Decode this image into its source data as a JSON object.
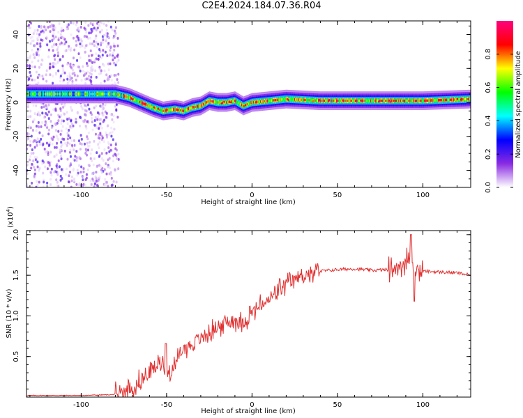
{
  "title": "C2E4.2024.184.07.36.R04",
  "chart_data": [
    {
      "type": "heatmap",
      "xlabel": "Height of straight line (km)",
      "ylabel": "Frequency (Hz)",
      "xlim": [
        -132,
        128
      ],
      "ylim": [
        -50,
        48
      ],
      "x_ticks": [
        -100,
        -50,
        0,
        50,
        100
      ],
      "y_ticks": [
        -40,
        -20,
        0,
        20,
        40
      ],
      "ridge": {
        "x": [
          -132,
          -110,
          -90,
          -80,
          -72,
          -65,
          -58,
          -52,
          -45,
          -40,
          -35,
          -30,
          -25,
          -20,
          -15,
          -10,
          -5,
          0,
          10,
          20,
          40,
          60,
          80,
          100,
          128
        ],
        "freq": [
          5,
          5,
          5,
          5,
          3,
          0,
          -3,
          -5,
          -4,
          -5,
          -3,
          -2,
          1,
          0,
          0,
          1,
          -2,
          0,
          1,
          2,
          1,
          1,
          1,
          1,
          2
        ]
      },
      "scatter_range": [
        -132,
        -78
      ],
      "colorbar": {
        "label": "Normalized spectral amplitude",
        "range": [
          0,
          1
        ],
        "ticks": [
          "0.0",
          "0.2",
          "0.4",
          "0.6",
          "0.8"
        ],
        "colors": [
          "#ffffff",
          "#8a2be2",
          "#0000ff",
          "#00ffff",
          "#00ff00",
          "#ffff00",
          "#ff0000",
          "#ff007f"
        ]
      }
    },
    {
      "type": "line",
      "xlabel": "Height of straight line (km)",
      "ylabel": "SNR (10 * v/v)",
      "scale_note": "(x10",
      "scale_exp": "4",
      "xlim": [
        -132,
        128
      ],
      "ylim": [
        0,
        2.05
      ],
      "x_ticks": [
        -100,
        -50,
        0,
        50,
        100
      ],
      "y_ticks": [
        0.5,
        1.0,
        1.5,
        2.0
      ],
      "y_tick_labels": [
        "0.5",
        "1.0",
        "1.5",
        "2.0"
      ],
      "color": "#e03030",
      "series": [
        {
          "x": [
            -132,
            -100,
            -82,
            -75,
            -70,
            -65,
            -60,
            -55,
            -52,
            -50,
            -45,
            -42,
            -40,
            -35,
            -30,
            -25,
            -20,
            -15,
            -10,
            -5,
            0,
            5,
            10,
            15,
            20,
            25,
            30,
            35,
            40,
            50,
            60,
            70,
            80,
            85,
            90,
            93,
            95,
            100,
            110,
            120,
            128
          ],
          "y": [
            0.02,
            0.02,
            0.03,
            0.06,
            0.12,
            0.2,
            0.3,
            0.4,
            0.45,
            0.3,
            0.38,
            0.55,
            0.6,
            0.65,
            0.72,
            0.8,
            0.85,
            0.92,
            0.95,
            0.92,
            1.05,
            1.12,
            1.2,
            1.3,
            1.38,
            1.45,
            1.5,
            1.52,
            1.55,
            1.57,
            1.58,
            1.56,
            1.57,
            1.6,
            1.65,
            1.7,
            1.58,
            1.55,
            1.54,
            1.53,
            1.5
          ]
        }
      ]
    }
  ]
}
